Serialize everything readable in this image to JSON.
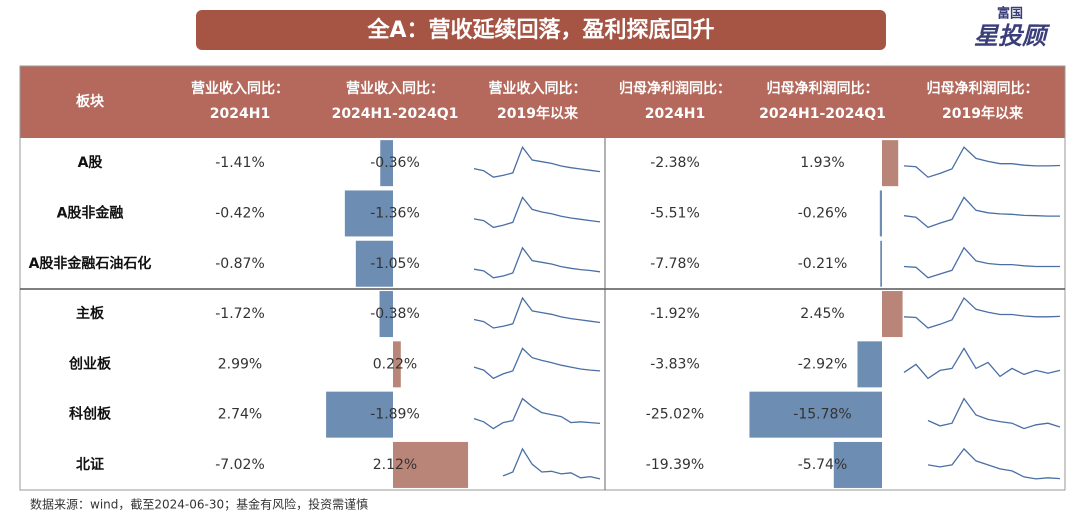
{
  "header": {
    "title": "全A：营收延续回落，盈利探底回升",
    "logo_top": "富国",
    "logo_main": "星投顾"
  },
  "table": {
    "columns": [
      [
        "板块"
      ],
      [
        "营业收入同比：",
        "2024H1"
      ],
      [
        "营业收入同比：",
        "2024H1-2024Q1"
      ],
      [
        "营业收入同比：",
        "2019年以来"
      ],
      [
        "归母净利润同比：",
        "2024H1"
      ],
      [
        "归母净利润同比：",
        "2024H1-2024Q1"
      ],
      [
        "归母净利润同比：",
        "2019年以来"
      ]
    ],
    "rows": [
      {
        "name": "A股",
        "rev_h1": "-1.41%",
        "rev_chg": {
          "value": -0.36,
          "label": "-0.36%"
        },
        "rev_trend": [
          5,
          4.5,
          3,
          3.4,
          4,
          10,
          7,
          6.6,
          6.2,
          5.6,
          5.2,
          4.9,
          4.6,
          4.3
        ],
        "np_h1": "-2.38%",
        "np_chg": {
          "value": 1.93,
          "label": "1.93%"
        },
        "np_trend": [
          5,
          4.8,
          2,
          3,
          4.2,
          10,
          7,
          6.2,
          5.6,
          5.6,
          5.2,
          5,
          5,
          5.1
        ]
      },
      {
        "name": "A股非金融",
        "rev_h1": "-0.42%",
        "rev_chg": {
          "value": -1.36,
          "label": "-1.36%"
        },
        "rev_trend": [
          5,
          4.6,
          3,
          3.5,
          4.2,
          10,
          7.2,
          6.6,
          6.2,
          5.6,
          5.2,
          4.9,
          4.6,
          4.3
        ],
        "np_h1": "-5.51%",
        "np_chg": {
          "value": -0.26,
          "label": "-0.26%"
        },
        "np_trend": [
          5,
          4.6,
          1.8,
          3,
          4,
          10,
          6.5,
          5.8,
          5.5,
          5.4,
          5.1,
          5,
          4.9,
          4.9
        ]
      },
      {
        "name": "A股非金融石油石化",
        "rev_h1": "-0.87%",
        "rev_chg": {
          "value": -1.05,
          "label": "-1.05%"
        },
        "rev_trend": [
          5,
          4.6,
          3,
          3.4,
          4.1,
          10,
          7,
          6.6,
          6.2,
          5.6,
          5.2,
          4.9,
          4.7,
          4.4
        ],
        "np_h1": "-7.78%",
        "np_chg": {
          "value": -0.21,
          "label": "-0.21%"
        },
        "np_trend": [
          5,
          4.8,
          2,
          3,
          4,
          10,
          6.5,
          5.8,
          5.5,
          5.5,
          5.2,
          5,
          5,
          5
        ]
      },
      {
        "name": "主板",
        "rev_h1": "-1.72%",
        "rev_chg": {
          "value": -0.38,
          "label": "-0.38%"
        },
        "rev_trend": [
          5,
          4.5,
          3,
          3.4,
          4,
          10,
          7,
          6.6,
          6.2,
          5.6,
          5.2,
          4.9,
          4.6,
          4.3
        ],
        "np_h1": "-1.92%",
        "np_chg": {
          "value": 2.45,
          "label": "2.45%"
        },
        "np_trend": [
          5,
          4.8,
          2,
          3,
          4.2,
          10,
          7,
          6.2,
          5.6,
          5.6,
          5.2,
          5,
          5,
          5.1
        ]
      },
      {
        "name": "创业板",
        "rev_h1": "2.99%",
        "rev_chg": {
          "value": 0.22,
          "label": "0.22%"
        },
        "rev_trend": [
          5,
          4.2,
          2,
          3.2,
          4,
          10,
          7.5,
          6.8,
          6.2,
          5.5,
          5,
          4.5,
          4.2,
          4
        ],
        "np_h1": "-3.83%",
        "np_chg": {
          "value": -2.92,
          "label": "-2.92%"
        },
        "np_trend": [
          4,
          6,
          2.5,
          4.5,
          5,
          10,
          5,
          6.5,
          3,
          5,
          3.5,
          4.5,
          3.8,
          4.5
        ]
      },
      {
        "name": "科创板",
        "rev_h1": "2.74%",
        "rev_chg": {
          "value": -1.89,
          "label": "-1.89%"
        },
        "rev_trend": [
          5,
          4.2,
          2.5,
          4,
          4.5,
          10,
          8,
          6.5,
          6,
          5.5,
          4,
          4.2,
          4,
          3.8
        ],
        "np_h1": "-25.02%",
        "np_chg": {
          "value": -15.78,
          "label": "-15.78%"
        },
        "np_trend": [
          null,
          null,
          5,
          4,
          4.5,
          9,
          6,
          5.2,
          4.8,
          4.5,
          3.5,
          4.2,
          4.5,
          3.8
        ]
      },
      {
        "name": "北证",
        "rev_h1": "-7.02%",
        "rev_chg": {
          "value": 2.12,
          "label": "2.12%"
        },
        "rev_trend": [
          null,
          null,
          null,
          3,
          4,
          10,
          6,
          4,
          4.2,
          3.5,
          3.8,
          2.5,
          2.8,
          2.2
        ],
        "np_h1": "-19.39%",
        "np_chg": {
          "value": -5.74,
          "label": "-5.74%"
        },
        "np_trend": [
          null,
          null,
          6,
          5.5,
          6,
          10,
          7,
          6,
          5,
          4.5,
          3,
          2.5,
          2.8,
          2.6
        ]
      }
    ]
  },
  "footnote": "数据来源：wind，截至2024-06-30；基金有风险，投资需谨慎"
}
